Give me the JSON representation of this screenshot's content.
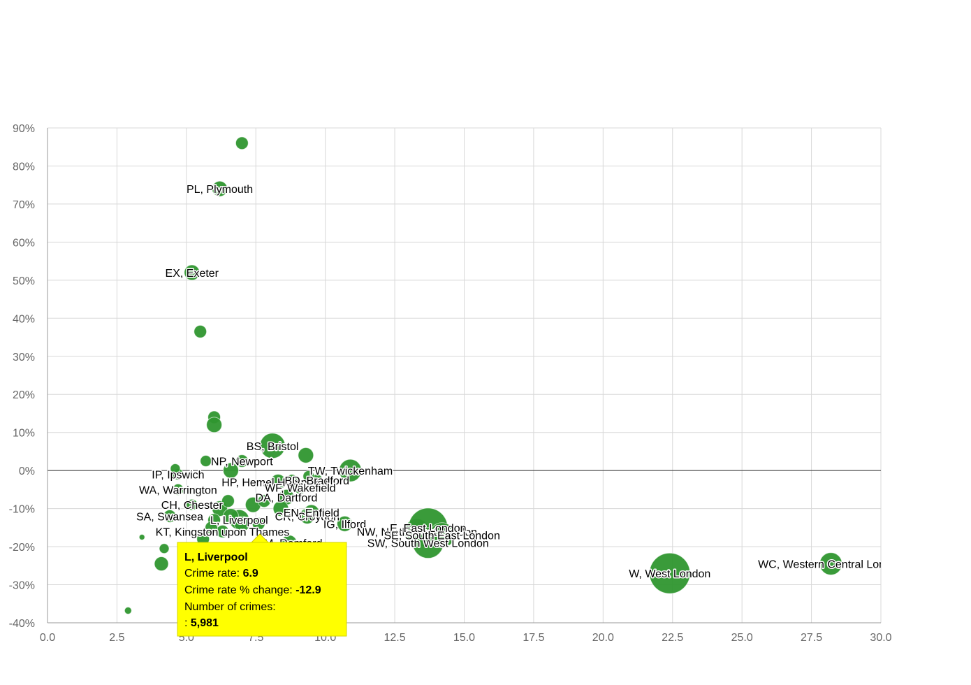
{
  "chart_data": {
    "type": "bubble",
    "xlim": [
      0,
      30
    ],
    "ylim": [
      -40,
      90
    ],
    "xticks": [
      {
        "value": 0,
        "label": "0.0"
      },
      2.5,
      {
        "value": 5,
        "label": "5.0"
      },
      7.5,
      {
        "value": 10,
        "label": "10.0"
      },
      12.5,
      {
        "value": 15,
        "label": "15.0"
      },
      17.5,
      {
        "value": 20,
        "label": "20.0"
      },
      22.5,
      {
        "value": 25,
        "label": "25.0"
      },
      27.5,
      {
        "value": 30,
        "label": "30.0"
      }
    ],
    "yticks": [
      {
        "value": -40,
        "label": "-40%"
      },
      {
        "value": -30,
        "label": "-30%"
      },
      {
        "value": -20,
        "label": "-20%"
      },
      {
        "value": -10,
        "label": "-10%"
      },
      {
        "value": 0,
        "label": "0%"
      },
      {
        "value": 10,
        "label": "10%"
      },
      {
        "value": 20,
        "label": "20%"
      },
      {
        "value": 30,
        "label": "30%"
      },
      {
        "value": 40,
        "label": "40%"
      },
      {
        "value": 50,
        "label": "50%"
      },
      {
        "value": 60,
        "label": "60%"
      },
      {
        "value": 70,
        "label": "70%"
      },
      {
        "value": 80,
        "label": "80%"
      },
      {
        "value": 90,
        "label": "90%"
      }
    ],
    "grid": true,
    "series": [
      {
        "color": "#2f962f",
        "x": [
          7.0,
          6.2,
          5.2,
          5.5,
          6.0,
          6.0,
          8.1,
          9.3,
          7.0,
          5.7,
          10.9,
          4.7,
          4.6,
          6.6,
          8.3,
          4.7,
          5.2,
          4.4,
          6.3,
          8.7,
          9.35,
          9.5,
          10.7,
          13.3,
          13.7,
          13.7,
          14.2,
          22.4,
          28.2,
          6.9,
          8.6,
          9.7,
          9.1,
          3.4,
          4.2,
          4.1,
          2.9,
          6.2,
          6.5,
          7.4,
          7.8,
          8.4,
          6.0,
          6.6,
          7.0,
          7.6,
          8.8,
          9.4,
          5.6,
          5.9
        ],
        "values": [
          86,
          74,
          52,
          36.5,
          14,
          12,
          6.5,
          4,
          2.5,
          2.5,
          0,
          -1,
          0.5,
          0,
          -3,
          -5,
          -9,
          -12,
          -16,
          -19,
          -12,
          -11,
          -14,
          -16,
          -15,
          -19,
          -17,
          -27,
          -24.5,
          -12.9,
          -7,
          -2.5,
          -4.5,
          -17.5,
          -20.5,
          -24.5,
          -36.8,
          -10,
          -8,
          -9,
          -8,
          -10,
          -13,
          -12,
          -14,
          -14,
          -2.5,
          -1.5,
          -18,
          -15
        ],
        "sizes": [
          2400,
          3600,
          3600,
          2400,
          2400,
          3600,
          9700,
          3600,
          2400,
          1900,
          7650,
          1900,
          1460,
          3600,
          3600,
          1900,
          1900,
          2400,
          2400,
          3600,
          3600,
          3600,
          3600,
          9700,
          23400,
          14500,
          9700,
          25100,
          7650,
          5981,
          3600,
          1900,
          2400,
          480,
          1460,
          3000,
          750,
          3600,
          2400,
          3600,
          2400,
          3600,
          2400,
          3600,
          3600,
          2400,
          1900,
          1900,
          2400,
          2400
        ],
        "labels": [
          "",
          "PL, Plymouth",
          "EX, Exeter",
          null,
          null,
          null,
          "BS, Bristol",
          null,
          "NP, Newport",
          null,
          "TW, Twickenham",
          "IP, Ipswich",
          null,
          null,
          "HP, Hemel Hempstead",
          "WA, Warrington",
          "CH, Chester",
          "SA, Swansea",
          "KT, Kingston upon Thames",
          "RM, Romford",
          "CR, Croydon",
          "EN, Enfield",
          "IG, Ilford",
          "NW, North West London",
          "E, East London",
          "SW, South West London",
          "SE, South East London",
          "W, West London",
          "WC, Western Central London",
          "L, Liverpool",
          "DA, Dartford",
          "BD, Bradford",
          "WF, Wakefield",
          null,
          null,
          null,
          null,
          null,
          null,
          null,
          null,
          null,
          null,
          null,
          null,
          null,
          null,
          null,
          null,
          null
        ]
      }
    ],
    "tooltip": {
      "title": "L, Liverpool",
      "rate_label": "Crime rate:",
      "rate": 6.9,
      "change_label": "Crime rate % change:",
      "change": -12.9,
      "crimes_label": "Number of crimes:",
      "crimes_prefix": ":",
      "crimes": "5,981"
    }
  }
}
